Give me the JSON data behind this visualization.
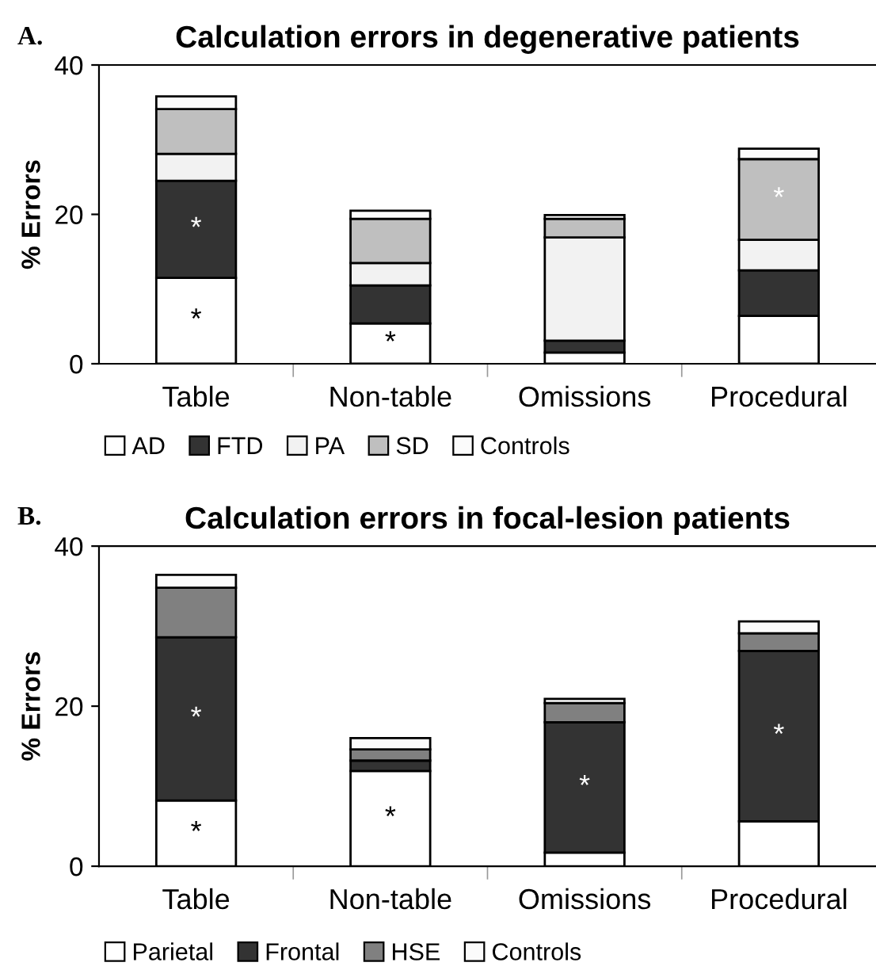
{
  "chart_data": [
    {
      "type": "bar",
      "stacked": true,
      "title": "Calculation errors in degenerative patients",
      "ylabel": "% Errors",
      "categories": [
        "Table",
        "Non-table",
        "Omissions",
        "Procedural"
      ],
      "ylim": [
        0,
        40
      ],
      "yticks": [
        0,
        20,
        40
      ],
      "grid": false,
      "legend": "bottom",
      "series": [
        {
          "name": "AD",
          "color": "#ffffff",
          "values": [
            11.5,
            5.4,
            1.5,
            6.4
          ],
          "value_labels": [
            "*",
            "*",
            null,
            null
          ]
        },
        {
          "name": "FTD",
          "color": "#333333",
          "values": [
            13.0,
            5.1,
            1.6,
            6.1
          ],
          "value_labels": [
            "*",
            null,
            null,
            null
          ]
        },
        {
          "name": "PA",
          "color": "#f2f2f2",
          "values": [
            3.6,
            3.0,
            13.8,
            4.1
          ]
        },
        {
          "name": "SD",
          "color": "#bfbfbf",
          "values": [
            6.0,
            5.9,
            2.5,
            10.8
          ],
          "value_labels": [
            null,
            null,
            null,
            "*"
          ]
        },
        {
          "name": "Controls",
          "color": "#fbfbfb",
          "values": [
            1.7,
            1.1,
            0.5,
            1.4
          ]
        }
      ],
      "annotations": [
        "A."
      ]
    },
    {
      "type": "bar",
      "stacked": true,
      "title": "Calculation errors in focal-lesion patients",
      "ylabel": "% Errors",
      "categories": [
        "Table",
        "Non-table",
        "Omissions",
        "Procedural"
      ],
      "ylim": [
        0,
        40
      ],
      "yticks": [
        0,
        20,
        40
      ],
      "grid": false,
      "legend": "bottom",
      "series": [
        {
          "name": "Parietal",
          "color": "#ffffff",
          "values": [
            8.2,
            11.9,
            1.7,
            5.6
          ],
          "value_labels": [
            "*",
            "*",
            null,
            null
          ]
        },
        {
          "name": "Frontal",
          "color": "#333333",
          "values": [
            20.4,
            1.3,
            16.3,
            21.3
          ],
          "value_labels": [
            "*",
            null,
            "*",
            "*"
          ]
        },
        {
          "name": "HSE",
          "color": "#808080",
          "values": [
            6.2,
            1.4,
            2.4,
            2.2
          ]
        },
        {
          "name": "Controls",
          "color": "#fbfbfb",
          "values": [
            1.6,
            1.4,
            0.5,
            1.5
          ]
        }
      ],
      "annotations": [
        "B."
      ]
    }
  ]
}
